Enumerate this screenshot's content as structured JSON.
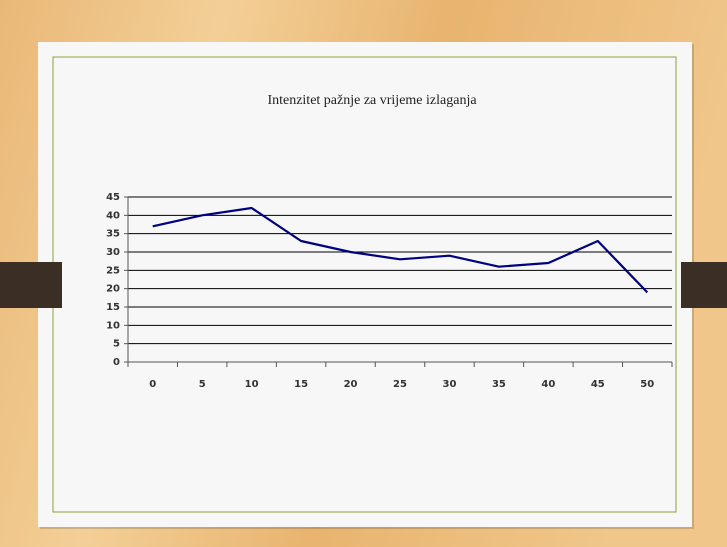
{
  "chart_data": {
    "type": "line",
    "title": "Intenzitet pažnje za vrijeme izlaganja",
    "categories": [
      "0",
      "5",
      "10",
      "15",
      "20",
      "25",
      "30",
      "35",
      "40",
      "45",
      "50"
    ],
    "series": [
      {
        "color": "#000080",
        "values": [
          37,
          40,
          42,
          33,
          30,
          28,
          29,
          26,
          27,
          33,
          19
        ]
      }
    ],
    "ylim": [
      0,
      45
    ],
    "yticks": [
      0,
      5,
      10,
      15,
      20,
      25,
      30,
      35,
      40,
      45
    ],
    "grid": true,
    "grid_color": "#000000"
  }
}
